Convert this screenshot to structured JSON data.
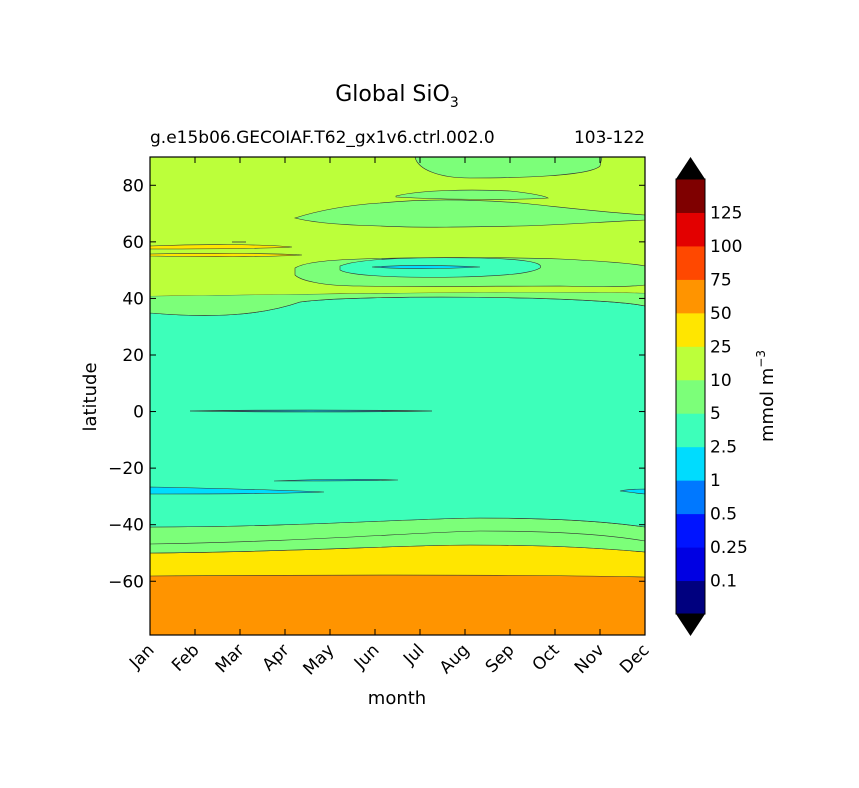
{
  "chart_data": {
    "type": "contour",
    "title": "Global SiO",
    "title_subscript": "3",
    "subtitle_left": "g.e15b06.GECOIAF.T62_gx1v6.ctrl.002.0",
    "subtitle_right": "103-122",
    "xlabel": "month",
    "ylabel": "latitude",
    "x_tick_labels": [
      "Jan",
      "Feb",
      "Mar",
      "Apr",
      "May",
      "Jun",
      "Jul",
      "Aug",
      "Sep",
      "Oct",
      "Nov",
      "Dec"
    ],
    "xlim": [
      0,
      11
    ],
    "ylim": [
      -79,
      90
    ],
    "y_ticks": [
      -60,
      -40,
      -20,
      0,
      20,
      40,
      60,
      80
    ],
    "y_tick_labels": [
      "−60",
      "−40",
      "−20",
      "0",
      "20",
      "40",
      "60",
      "80"
    ],
    "colorbar": {
      "label": "mmol m",
      "label_superscript": "−3",
      "levels": [
        "0.1",
        "0.25",
        "0.5",
        "1",
        "2.5",
        "5",
        "10",
        "25",
        "50",
        "75",
        "100",
        "125"
      ],
      "colors": [
        "#00007f",
        "#0000e3",
        "#0014ff",
        "#0078ff",
        "#00dcfe",
        "#3dffba",
        "#7cff79",
        "#bcff3a",
        "#ffe600",
        "#ff9400",
        "#ff4800",
        "#e30000",
        "#7f0000"
      ],
      "extend_under_color": "#000000",
      "extend_over_color": "#000000"
    },
    "bands": [
      {
        "range": "10-25",
        "lat_from": 90,
        "lat_to": 41
      },
      {
        "range": "5-10",
        "lat_from": 41,
        "lat_to": 35
      },
      {
        "range": "2.5-5",
        "lat_from": 35,
        "lat_to": -41
      },
      {
        "range": "5-10",
        "lat_from": -41,
        "lat_to": -50
      },
      {
        "range": "25-50",
        "lat_from": -50,
        "lat_to": -57
      },
      {
        "range": "50-75",
        "lat_from": -57,
        "lat_to": -79
      }
    ]
  }
}
